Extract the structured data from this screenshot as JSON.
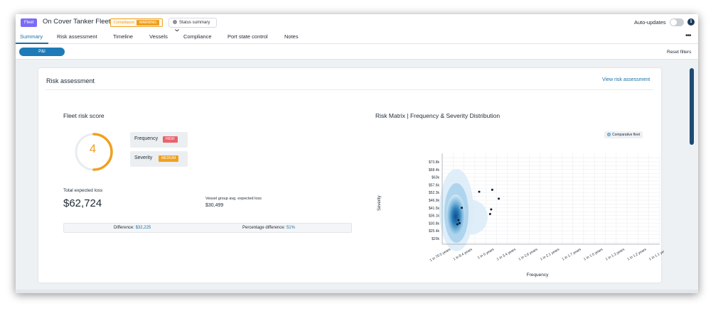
{
  "header": {
    "fleet_tag": "Fleet",
    "fleet_name": "On Cover Tanker Fleet",
    "compliance_label": "Compliance",
    "compliance_status": "WARNING",
    "status_summary": "Status summary",
    "auto_updates_label": "Auto-updates",
    "info_icon": "info-icon",
    "more_icon": "more-horizontal-icon"
  },
  "tabs": [
    {
      "label": "Summary"
    },
    {
      "label": "Risk assessment"
    },
    {
      "label": "Timeline"
    },
    {
      "label": "Vessels"
    },
    {
      "label": "Compliance"
    },
    {
      "label": "Port state control"
    },
    {
      "label": "Notes"
    }
  ],
  "filters": {
    "pni_label": "P&I",
    "reset_label": "Reset filters"
  },
  "risk_card": {
    "title": "Risk assessment",
    "link": "View risk assessment",
    "score_title": "Fleet risk score",
    "score_value": "4",
    "frequency_label": "Frequency",
    "frequency_level": "HIGH",
    "severity_label": "Severity",
    "severity_level": "MEDIUM",
    "total_loss_label": "Total expected loss",
    "total_loss_value": "$62,724",
    "avg_loss_label": "Vessel group avg. expected loss",
    "avg_loss_value": "$30,499",
    "difference_label": "Difference:",
    "difference_value": "$32,225",
    "pct_difference_label": "Percentage difference:",
    "pct_difference_value": "51%",
    "matrix_title": "Risk Matrix | Frequency & Severity Distribution",
    "legend_label": "Comparative fleet"
  },
  "colors": {
    "accent": "#1b6fa8",
    "warning": "#f0a020",
    "high": "#e8636e",
    "medium": "#f0a020"
  },
  "chart_data": {
    "type": "scatter",
    "xlabel": "Frequency",
    "ylabel": "Severity",
    "x_ticks": [
      "1 in 70.5 years",
      "1 in 8.4 years",
      "1 in 5 years",
      "1 in 3.4 years",
      "1 in 2.6 years",
      "1 in 2.1 years",
      "1 in 1.7 years",
      "1 in 1.5 years",
      "1 in 1.3 years",
      "1 in 1.2 years",
      "1 in 1.1 years"
    ],
    "y_ticks": [
      "$20k",
      "$25.4k",
      "$30.8k",
      "$36.1k",
      "$41.5k",
      "$46.9k",
      "$52.3k",
      "$57.6k",
      "$63k",
      "$68.4k",
      "$73.8k"
    ],
    "series": [
      {
        "name": "Comparative fleet",
        "kind": "density"
      }
    ],
    "points_index_scale": [
      {
        "x": 1.25,
        "y": 2.4
      },
      {
        "x": 1.3,
        "y": 2.0
      },
      {
        "x": 1.2,
        "y": 1.85
      },
      {
        "x": 1.4,
        "y": 4.0
      },
      {
        "x": 2.2,
        "y": 6.1
      },
      {
        "x": 2.8,
        "y": 6.35
      },
      {
        "x": 2.75,
        "y": 3.8
      },
      {
        "x": 2.7,
        "y": 3.2
      },
      {
        "x": 3.1,
        "y": 5.2
      }
    ],
    "grid": true
  }
}
